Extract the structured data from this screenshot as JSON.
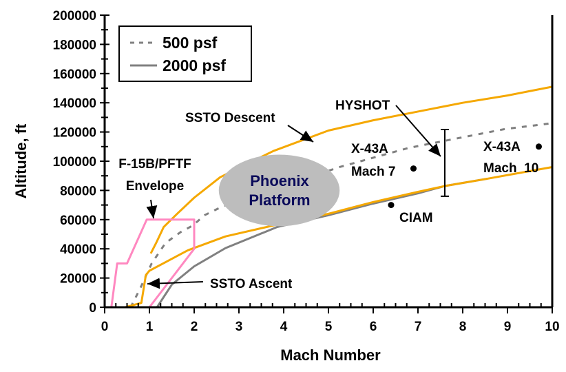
{
  "chart_data": {
    "type": "line",
    "xlabel": "Mach Number",
    "ylabel": "Altitude, ft",
    "xlim": [
      0,
      10
    ],
    "ylim": [
      0,
      200000
    ],
    "xticks": [
      "0",
      "1",
      "2",
      "3",
      "4",
      "5",
      "6",
      "7",
      "8",
      "9",
      "10"
    ],
    "yticks": [
      "0",
      "20000",
      "40000",
      "60000",
      "80000",
      "100000",
      "120000",
      "140000",
      "160000",
      "180000",
      "200000"
    ],
    "grid": false,
    "legend": {
      "placement": "top-left",
      "entries": [
        "500 psf",
        "2000 psf"
      ]
    },
    "colors": {
      "dynamic_pressure": "#808080",
      "ssto": "#f5a800",
      "envelope": "#ff88c0",
      "phoenix_fill": "#bdbdbd",
      "phoenix_text": "#0a0a5a"
    },
    "series": [
      {
        "name": "500 psf",
        "style": "dashed",
        "color": "#808080",
        "x": [
          0.58,
          0.78,
          1.05,
          1.36,
          1.7,
          1.97,
          2.23,
          2.63,
          5.25,
          6.78,
          7.77,
          8.94,
          10.0
        ],
        "y": [
          0,
          12000,
          30000,
          44000,
          51500,
          56000,
          63000,
          69000,
          96000,
          109000,
          115000,
          122000,
          126000
        ]
      },
      {
        "name": "2000 psf",
        "style": "solid",
        "color": "#808080",
        "x": [
          1.17,
          1.5,
          2.0,
          2.7,
          3.86,
          5.0,
          6.0,
          7.0,
          7.6,
          8.55
        ],
        "y": [
          0,
          15500,
          28000,
          40500,
          55000,
          63000,
          71000,
          78000,
          83000,
          88000
        ]
      },
      {
        "label": "SSTO Descent",
        "color": "#f5a800",
        "x": [
          1.03,
          1.15,
          1.32,
          1.62,
          2.0,
          2.58,
          3.77,
          5.0,
          6.0,
          7.0,
          8.0,
          9.0,
          10.0
        ],
        "y": [
          36800,
          44000,
          55000,
          64000,
          75000,
          89000,
          107000,
          121000,
          128000,
          134000,
          140000,
          145000,
          151000
        ]
      },
      {
        "label": "SSTO Ascent",
        "color": "#f5a800",
        "x": [
          0.46,
          0.82,
          0.92,
          1.0,
          1.86,
          2.7,
          3.77,
          5.0,
          6.0,
          7.0,
          7.6,
          8.55,
          10.0
        ],
        "y": [
          0,
          3000,
          22000,
          25000,
          39000,
          48500,
          56000,
          64000,
          72000,
          79000,
          83000,
          88000,
          96000
        ]
      },
      {
        "label": "F-15B/PFTF Envelope",
        "color": "#ff88c0",
        "x": [
          0.15,
          0.28,
          0.5,
          0.94,
          2.0,
          2.0,
          1.0
        ],
        "y": [
          0,
          30000,
          30000,
          60000,
          60000,
          40000,
          0
        ]
      }
    ],
    "points": [
      {
        "label": "X-43A Mach 7",
        "x": 6.9,
        "y": 95000
      },
      {
        "label": "X-43A Mach 10",
        "x": 9.7,
        "y": 110000
      },
      {
        "label": "CIAM",
        "x": 6.4,
        "y": 70000
      }
    ],
    "range_bar": {
      "label": "HYSHOT",
      "x": 7.6,
      "y_min": 76000,
      "y_max": 121700
    },
    "region": {
      "label": "Phoenix Platform",
      "center_x": 3.9,
      "center_y": 80000,
      "half_width_mach": 1.35,
      "half_height_ft": 24500
    },
    "annotations": {
      "ssto_descent": "SSTO Descent",
      "ssto_ascent": "SSTO Ascent",
      "envelope_1": "F-15B/PFTF",
      "envelope_2": "Envelope",
      "hyshot": "HYSHOT",
      "x43a_7_1": "X-43A",
      "x43a_7_2": "Mach 7",
      "x43a_10_1": "X-43A",
      "x43a_10_2": "Mach  10",
      "ciam": "CIAM",
      "phoenix_1": "Phoenix",
      "phoenix_2": "Platform"
    }
  }
}
